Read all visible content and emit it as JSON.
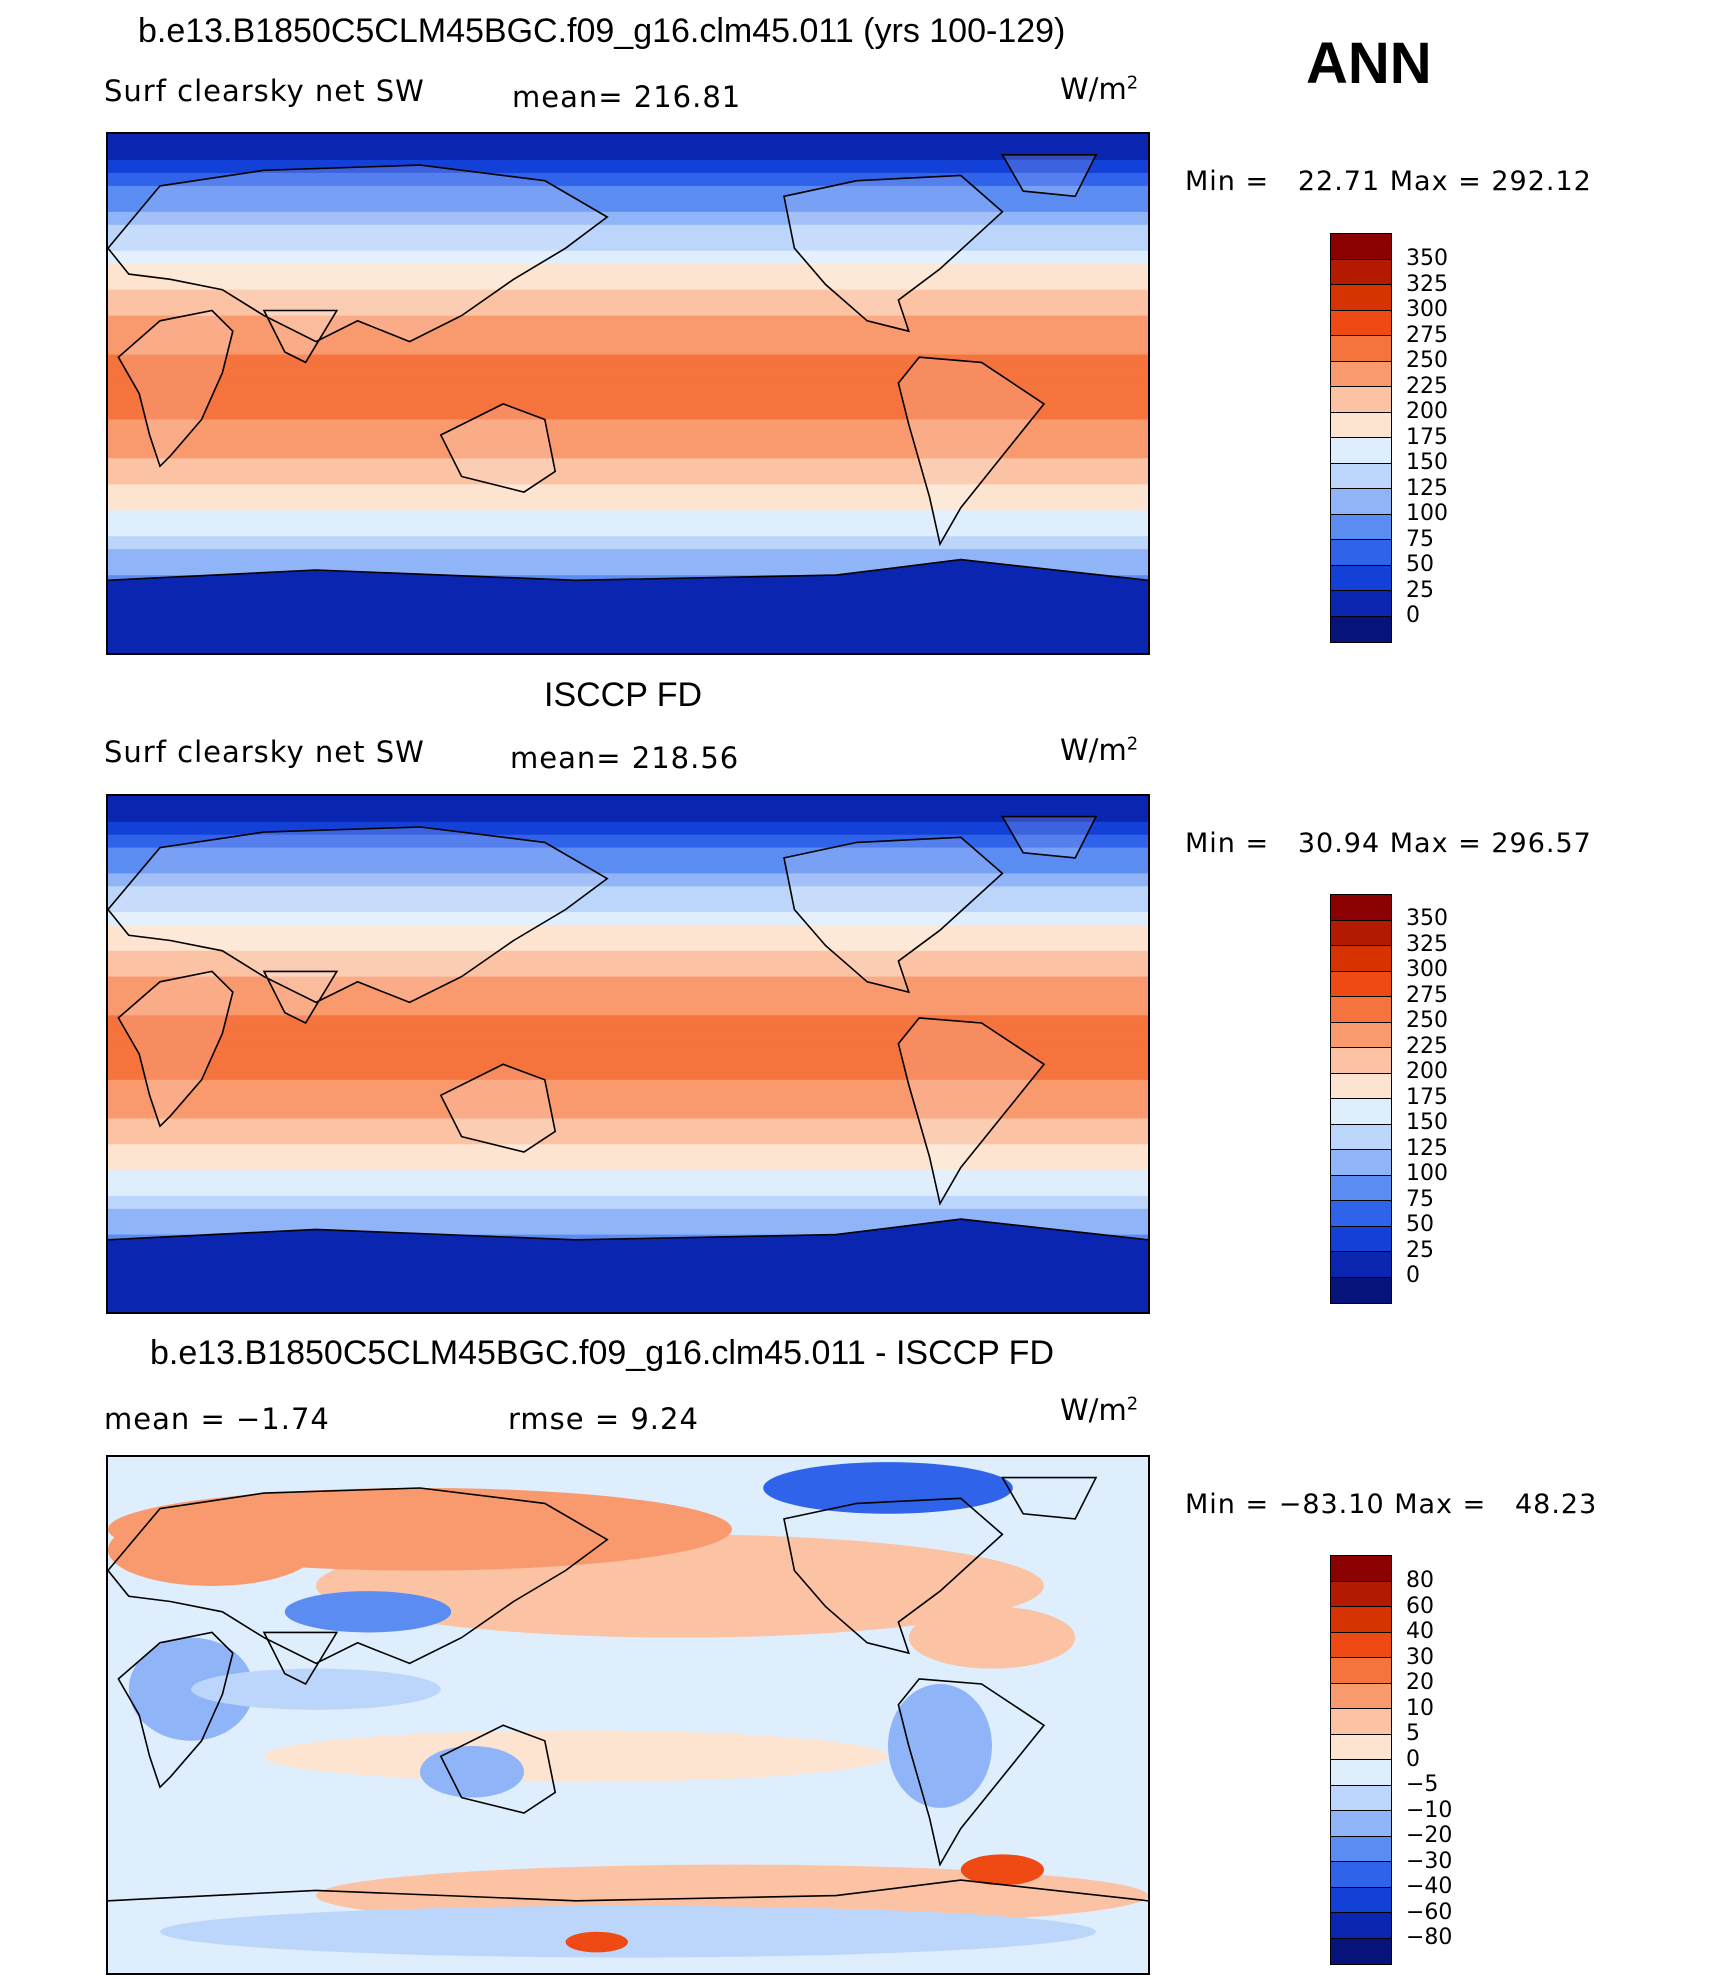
{
  "season": "ANN",
  "units_label": "W/m",
  "units_exp": "2",
  "panels": [
    {
      "title": "b.e13.B1850C5CLM45BGC.f09_g16.clm45.011 (yrs 100-129)",
      "left_label": "Surf clearsky net SW",
      "center_label": "mean= 216.81",
      "minmax": "Min =   22.71 Max = 292.12",
      "type": "absolute"
    },
    {
      "title": "ISCCP FD",
      "left_label": "Surf clearsky net SW",
      "center_label": "mean= 218.56",
      "minmax": "Min =   30.94 Max = 296.57",
      "type": "absolute"
    },
    {
      "title": "b.e13.B1850C5CLM45BGC.f09_g16.clm45.011 - ISCCP FD",
      "left_label": "mean =   −1.74",
      "center_label": "rmse =    9.24",
      "minmax": "Min = −83.10 Max =   48.23",
      "type": "difference"
    }
  ],
  "colorbars": {
    "absolute": {
      "levels": [
        "350",
        "325",
        "300",
        "275",
        "250",
        "225",
        "200",
        "175",
        "150",
        "125",
        "100",
        "75",
        "50",
        "25",
        "0"
      ],
      "colors": [
        "#8b0000",
        "#b31a00",
        "#d63300",
        "#f04a14",
        "#f5733d",
        "#f99a6e",
        "#fbc3a3",
        "#fde4d0",
        "#dfeefc",
        "#bcd6fb",
        "#8fb4f7",
        "#5b8cf2",
        "#2f63ea",
        "#1340d6",
        "#0a26b0",
        "#05137a"
      ]
    },
    "difference": {
      "levels": [
        "80",
        "60",
        "40",
        "30",
        "20",
        "10",
        "5",
        "0",
        "−5",
        "−10",
        "−20",
        "−30",
        "−40",
        "−60",
        "−80"
      ],
      "colors": [
        "#8b0000",
        "#b31a00",
        "#d63300",
        "#f04a14",
        "#f5733d",
        "#f99a6e",
        "#fbc3a3",
        "#fde4d0",
        "#dfeefc",
        "#bcd6fb",
        "#8fb4f7",
        "#5b8cf2",
        "#2f63ea",
        "#1340d6",
        "#0a26b0",
        "#05137a"
      ]
    }
  }
}
